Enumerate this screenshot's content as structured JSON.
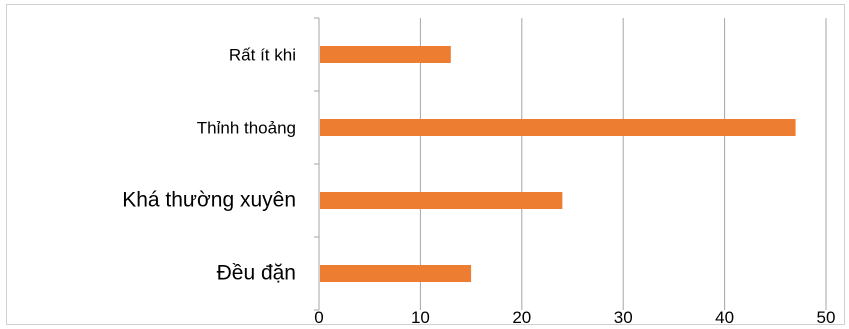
{
  "chart_data": {
    "type": "bar",
    "orientation": "horizontal",
    "categories": [
      "Rất ít khi",
      "Thỉnh thoảng",
      "Khá thường xuyên",
      "Đều đặn"
    ],
    "values": [
      13,
      47,
      24,
      15
    ],
    "xlim": [
      0,
      50
    ],
    "x_ticks": [
      "0",
      "10",
      "20",
      "30",
      "40",
      "50"
    ],
    "grid": "vertical",
    "bar_color": "#ED7D31",
    "legend": "none"
  }
}
